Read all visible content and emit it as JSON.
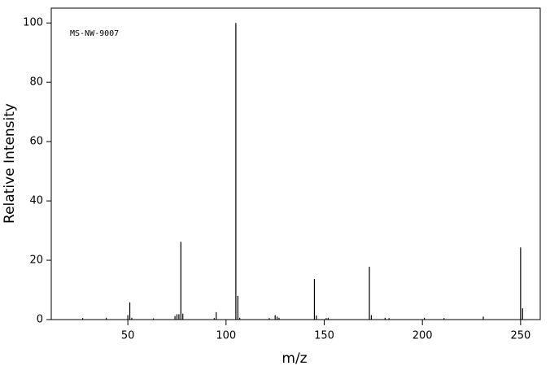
{
  "chart_data": {
    "type": "stem",
    "annotation": "MS-NW-9007",
    "xlabel": "m/z",
    "ylabel": "Relative Intensity",
    "x": [
      27,
      39,
      50,
      51,
      52,
      63,
      74,
      75,
      76,
      77,
      78,
      94,
      95,
      105,
      106,
      107,
      122,
      125,
      126,
      127,
      145,
      146,
      151,
      152,
      173,
      174,
      181,
      183,
      201,
      211,
      231,
      250,
      251
    ],
    "values": [
      0.5,
      0.6,
      1.5,
      5.8,
      0.6,
      0.4,
      1.2,
      1.8,
      1.8,
      26.2,
      2.0,
      0.5,
      2.5,
      100,
      8.0,
      0.6,
      0.5,
      1.5,
      1.0,
      0.6,
      13.7,
      1.4,
      0.5,
      0.6,
      17.8,
      1.5,
      0.6,
      0.5,
      0.6,
      0.5,
      1.0,
      24.3,
      3.8
    ],
    "color": "#000000",
    "xlim": [
      11,
      260
    ],
    "xticks": [
      50,
      100,
      150,
      200,
      250
    ],
    "ylim": [
      0,
      105
    ],
    "yticks": [
      0,
      20,
      40,
      60,
      80,
      100
    ]
  }
}
